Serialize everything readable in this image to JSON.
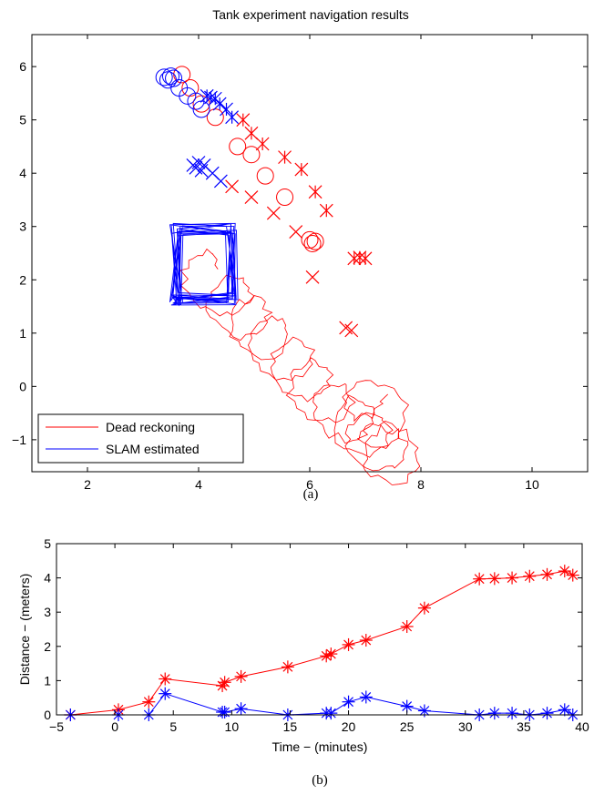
{
  "chart_data": [
    {
      "type": "line",
      "title": "Tank experiment navigation results",
      "xlabel": "",
      "ylabel": "",
      "xlim": [
        1,
        11
      ],
      "ylim": [
        -1.6,
        6.6
      ],
      "xticks": [
        "2",
        "4",
        "6",
        "8",
        "10"
      ],
      "yticks": [
        "−1",
        "0",
        "1",
        "2",
        "3",
        "4",
        "5",
        "6"
      ],
      "xtick_values": [
        2,
        4,
        6,
        8,
        10
      ],
      "ytick_values": [
        -1,
        0,
        1,
        2,
        3,
        4,
        5,
        6
      ],
      "legend": {
        "placement": "bottom-left",
        "entries": [
          "Dead reckoning",
          "SLAM estimated"
        ]
      },
      "caption": "(a)",
      "colors": {
        "dead_reckoning": "#ff0000",
        "slam": "#0000ff"
      },
      "series": [
        {
          "name": "Dead reckoning",
          "kind": "trajectory",
          "x": [
            3.9,
            4.5,
            4.8,
            5.2,
            5.6,
            5.9,
            6.3,
            6.7,
            7.0,
            7.3,
            7.5,
            7.3,
            6.9
          ],
          "y": [
            2.2,
            1.7,
            1.3,
            0.9,
            0.5,
            0.1,
            -0.3,
            -0.6,
            -0.9,
            -1.2,
            -1.4,
            -0.5,
            0.0
          ]
        },
        {
          "name": "SLAM estimated",
          "kind": "trajectory",
          "x": [
            3.6,
            4.6,
            4.6,
            3.6,
            3.6
          ],
          "y": [
            1.65,
            1.65,
            2.95,
            2.95,
            1.65
          ]
        }
      ],
      "markers": {
        "dead_reckoning_circles": {
          "x": [
            3.7,
            3.85,
            4.05,
            4.3,
            4.7,
            4.95,
            5.2,
            5.55,
            6.0,
            6.05,
            6.1
          ],
          "y": [
            5.85,
            5.6,
            5.3,
            5.05,
            4.5,
            4.35,
            3.95,
            3.55,
            2.75,
            2.68,
            2.72
          ]
        },
        "dead_reckoning_stars": {
          "x": [
            4.8,
            4.95,
            5.15,
            5.55,
            5.85,
            6.1,
            6.3,
            6.8,
            6.9,
            7.0
          ],
          "y": [
            5.0,
            4.75,
            4.55,
            4.3,
            4.07,
            3.65,
            3.3,
            2.4,
            2.42,
            2.4
          ]
        },
        "dead_reckoning_crosses": {
          "x": [
            4.6,
            4.95,
            5.35,
            5.75,
            6.05,
            6.65,
            6.75
          ],
          "y": [
            3.75,
            3.55,
            3.25,
            2.9,
            2.05,
            1.1,
            1.05
          ]
        },
        "slam_circles": {
          "x": [
            3.38,
            3.45,
            3.5,
            3.55,
            3.65,
            3.8,
            3.95,
            4.05
          ],
          "y": [
            5.8,
            5.75,
            5.82,
            5.78,
            5.6,
            5.45,
            5.35,
            5.2
          ]
        },
        "slam_stars": {
          "x": [
            4.15,
            4.22,
            4.3,
            4.38,
            4.5,
            4.6
          ],
          "y": [
            5.45,
            5.42,
            5.4,
            5.3,
            5.2,
            5.05
          ]
        },
        "slam_crosses": {
          "x": [
            3.9,
            3.95,
            4.0,
            4.05,
            4.1,
            4.25,
            4.4
          ],
          "y": [
            4.15,
            4.1,
            4.2,
            4.05,
            4.15,
            4.0,
            3.85
          ]
        }
      }
    },
    {
      "type": "line",
      "title": "",
      "xlabel": "Time − (minutes)",
      "ylabel": "Distance − (meters)",
      "xlim": [
        -5,
        40
      ],
      "ylim": [
        0,
        5
      ],
      "xticks": [
        "−5",
        "0",
        "5",
        "10",
        "15",
        "20",
        "25",
        "30",
        "35",
        "40"
      ],
      "yticks": [
        "0",
        "1",
        "2",
        "3",
        "4",
        "5"
      ],
      "xtick_values": [
        -5,
        0,
        5,
        10,
        15,
        20,
        25,
        30,
        35,
        40
      ],
      "ytick_values": [
        0,
        1,
        2,
        3,
        4,
        5
      ],
      "caption": "(b)",
      "series": [
        {
          "name": "",
          "color": "#ff0000",
          "x": [
            -3.8,
            0.3,
            2.9,
            4.3,
            9.2,
            9.4,
            10.8,
            14.8,
            18.1,
            18.5,
            20.0,
            21.5,
            25.0,
            26.5,
            31.2,
            32.5,
            34.0,
            35.5,
            37.0,
            38.5,
            39.2
          ],
          "y": [
            0.0,
            0.15,
            0.38,
            1.05,
            0.85,
            0.95,
            1.12,
            1.4,
            1.72,
            1.78,
            2.05,
            2.18,
            2.58,
            3.12,
            3.97,
            3.98,
            4.0,
            4.05,
            4.1,
            4.2,
            4.08
          ]
        },
        {
          "name": "",
          "color": "#0000ff",
          "x": [
            -3.8,
            0.3,
            2.9,
            4.3,
            9.2,
            9.4,
            10.8,
            14.8,
            18.1,
            18.5,
            20.0,
            21.5,
            25.0,
            26.5,
            31.2,
            32.5,
            34.0,
            35.5,
            37.0,
            38.5,
            39.2
          ],
          "y": [
            0.0,
            0.0,
            0.0,
            0.62,
            0.08,
            0.08,
            0.18,
            0.0,
            0.05,
            0.05,
            0.38,
            0.52,
            0.25,
            0.12,
            0.0,
            0.05,
            0.05,
            0.0,
            0.05,
            0.15,
            0.0
          ]
        }
      ]
    }
  ]
}
